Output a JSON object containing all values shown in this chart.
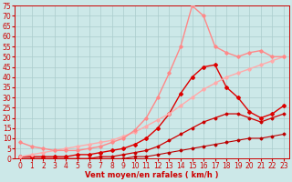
{
  "background_color": "#cce8e8",
  "grid_color": "#aacccc",
  "xlabel": "Vent moyen/en rafales ( km/h )",
  "xlabel_color": "#cc0000",
  "xlabel_fontsize": 6,
  "tick_color": "#cc0000",
  "tick_fontsize": 5.5,
  "xlim": [
    -0.5,
    23.5
  ],
  "ylim": [
    0,
    75
  ],
  "yticks": [
    0,
    5,
    10,
    15,
    20,
    25,
    30,
    35,
    40,
    45,
    50,
    55,
    60,
    65,
    70,
    75
  ],
  "xticks": [
    0,
    1,
    2,
    3,
    4,
    5,
    6,
    7,
    8,
    9,
    10,
    11,
    12,
    13,
    14,
    15,
    16,
    17,
    18,
    19,
    20,
    21,
    22,
    23
  ],
  "series": [
    {
      "x": [
        0,
        1,
        2,
        3,
        4,
        5,
        6,
        7,
        8,
        9,
        10,
        11,
        12,
        13,
        14,
        15,
        16,
        17,
        18,
        19,
        20,
        21,
        22,
        23
      ],
      "y": [
        0,
        0,
        0,
        0,
        0,
        0,
        0,
        0,
        0,
        0,
        1,
        1,
        2,
        3,
        4,
        5,
        6,
        7,
        8,
        9,
        10,
        10,
        11,
        12
      ],
      "color": "#bb0000",
      "lw": 0.8,
      "marker": "D",
      "markersize": 1.5
    },
    {
      "x": [
        0,
        1,
        2,
        3,
        4,
        5,
        6,
        7,
        8,
        9,
        10,
        11,
        12,
        13,
        14,
        15,
        16,
        17,
        18,
        19,
        20,
        21,
        22,
        23
      ],
      "y": [
        0,
        0,
        0,
        0,
        0,
        0,
        0,
        1,
        1,
        2,
        3,
        4,
        6,
        9,
        12,
        15,
        18,
        20,
        22,
        22,
        20,
        18,
        20,
        22
      ],
      "color": "#cc0000",
      "lw": 0.9,
      "marker": "D",
      "markersize": 1.5
    },
    {
      "x": [
        0,
        1,
        2,
        3,
        4,
        5,
        6,
        7,
        8,
        9,
        10,
        11,
        12,
        13,
        14,
        15,
        16,
        17,
        18,
        19,
        20,
        21,
        22,
        23
      ],
      "y": [
        1,
        1,
        1,
        1,
        1,
        2,
        2,
        3,
        4,
        5,
        7,
        10,
        15,
        22,
        32,
        40,
        45,
        46,
        35,
        30,
        23,
        20,
        22,
        26
      ],
      "color": "#dd0000",
      "lw": 1.0,
      "marker": "D",
      "markersize": 2.0
    },
    {
      "x": [
        0,
        1,
        2,
        3,
        4,
        5,
        6,
        7,
        8,
        9,
        10,
        11,
        12,
        13,
        14,
        15,
        16,
        17,
        18,
        19,
        20,
        21,
        22,
        23
      ],
      "y": [
        1,
        2,
        3,
        4,
        5,
        6,
        7,
        8,
        9,
        11,
        13,
        16,
        19,
        22,
        26,
        30,
        34,
        37,
        40,
        42,
        44,
        46,
        48,
        50
      ],
      "color": "#ffaaaa",
      "lw": 1.0,
      "marker": "D",
      "markersize": 1.8
    },
    {
      "x": [
        0,
        1,
        2,
        3,
        4,
        5,
        6,
        7,
        8,
        9,
        10,
        11,
        12,
        13,
        14,
        15,
        16,
        17,
        18,
        19,
        20,
        21,
        22,
        23
      ],
      "y": [
        8,
        6,
        5,
        4,
        4,
        4,
        5,
        6,
        8,
        10,
        14,
        20,
        30,
        42,
        55,
        75,
        70,
        55,
        52,
        50,
        52,
        53,
        50,
        50
      ],
      "color": "#ff8888",
      "lw": 1.0,
      "marker": "D",
      "markersize": 1.8
    }
  ]
}
